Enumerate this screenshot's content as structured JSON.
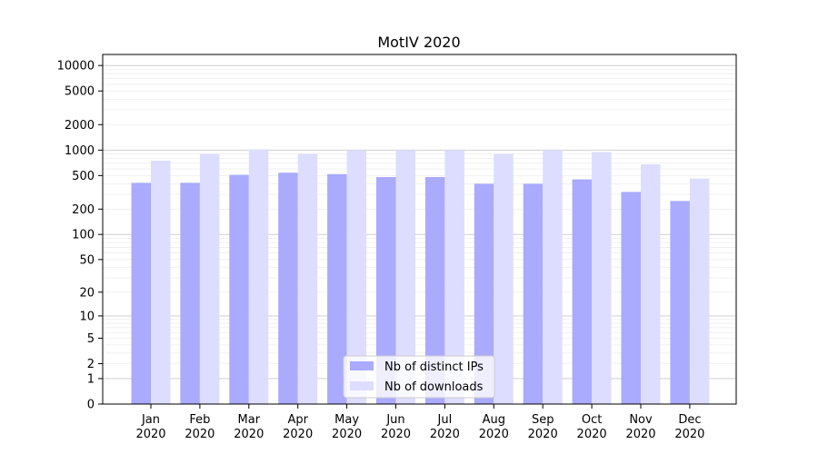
{
  "chart_data": {
    "type": "bar",
    "title": "MotIV 2020",
    "xlabel": "",
    "ylabel": "",
    "y_scale": "symlog",
    "ylim": [
      0,
      13500
    ],
    "grid": true,
    "legend_position": "bottom-center",
    "categories": [
      {
        "month": "Jan",
        "year": "2020"
      },
      {
        "month": "Feb",
        "year": "2020"
      },
      {
        "month": "Mar",
        "year": "2020"
      },
      {
        "month": "Apr",
        "year": "2020"
      },
      {
        "month": "May",
        "year": "2020"
      },
      {
        "month": "Jun",
        "year": "2020"
      },
      {
        "month": "Jul",
        "year": "2020"
      },
      {
        "month": "Aug",
        "year": "2020"
      },
      {
        "month": "Sep",
        "year": "2020"
      },
      {
        "month": "Oct",
        "year": "2020"
      },
      {
        "month": "Nov",
        "year": "2020"
      },
      {
        "month": "Dec",
        "year": "2020"
      }
    ],
    "y_tick_labels": [
      "0",
      "1",
      "2",
      "5",
      "10",
      "20",
      "50",
      "100",
      "200",
      "500",
      "1000",
      "2000",
      "5000",
      "10000"
    ],
    "series": [
      {
        "name": "Nb of distinct IPs",
        "color": "#aaaaff",
        "values": [
          410,
          410,
          510,
          540,
          520,
          480,
          480,
          400,
          400,
          450,
          320,
          250
        ]
      },
      {
        "name": "Nb of downloads",
        "color": "#ddddff",
        "values": [
          750,
          900,
          1020,
          900,
          1000,
          1000,
          1000,
          900,
          1000,
          950,
          680,
          460
        ]
      }
    ]
  }
}
